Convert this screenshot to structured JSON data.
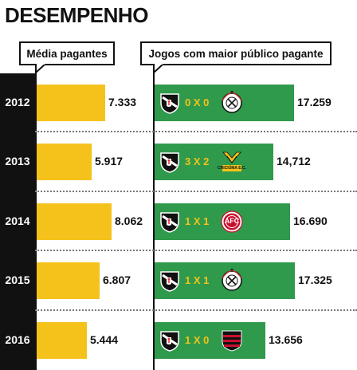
{
  "title": "DESEMPENHO",
  "headers": {
    "left": "Média pagantes",
    "right": "Jogos com maior público pagante"
  },
  "colors": {
    "average_bar": "#f5c21b",
    "game_bar": "#2f9a4b",
    "year_column": "#111111"
  },
  "chart_data": [
    {
      "type": "bar",
      "orientation": "horizontal",
      "title": "Média pagantes",
      "categories": [
        "2012",
        "2013",
        "2014",
        "2015",
        "2016"
      ],
      "values": [
        7333,
        5917,
        8062,
        6807,
        5444
      ],
      "value_labels": [
        "7.333",
        "5.917",
        "8.062",
        "6.807",
        "5.444"
      ]
    },
    {
      "type": "bar",
      "orientation": "horizontal",
      "title": "Jogos com maior público pagante",
      "categories": [
        "2012",
        "2013",
        "2014",
        "2015",
        "2016"
      ],
      "values": [
        17259,
        14712,
        16690,
        17325,
        13656
      ],
      "value_labels": [
        "17.259",
        "14,712",
        "16.690",
        "17.325",
        "13.656"
      ],
      "scores": [
        "0 X 0",
        "3 X 2",
        "1 X 1",
        "1 X 1",
        "1 X 0"
      ],
      "home_crest": "vasco-crest-icon",
      "opponent_crests": [
        "corinthians-crest-icon",
        "criciuma-crest-icon",
        "america-crest-icon",
        "corinthians-crest-icon",
        "flamengo-crest-icon"
      ],
      "opponent_crest_text": [
        "",
        "CRICIÚMA E.C.",
        "AFC",
        "",
        ""
      ]
    }
  ]
}
